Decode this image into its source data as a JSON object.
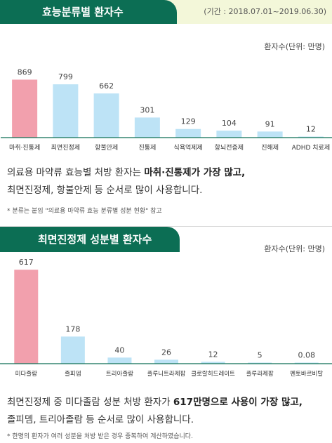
{
  "chart_data": [
    {
      "type": "bar",
      "title": "효능분류별 환자수",
      "subtitle": "(기간 : 2018.07.01~2019.06.30)",
      "ylabel": "환자수(단위: 만명)",
      "categories": [
        "마취·진통제",
        "최면진정제",
        "항불안제",
        "진통제",
        "식욕억제제",
        "항뇌전증제",
        "진해제",
        "ADHD 치료제"
      ],
      "values": [
        869,
        799,
        662,
        301,
        129,
        104,
        91,
        12
      ],
      "value_labels": [
        "869",
        "799",
        "662",
        "301",
        "129",
        "104",
        "91",
        "12"
      ],
      "ylim": [
        0,
        1000
      ],
      "highlight_index": 0,
      "colors": {
        "highlight": "#f2a0ad",
        "normal": "#bde3f6"
      },
      "grid": false
    },
    {
      "type": "bar",
      "title": "최면진정제 성분별 환자수",
      "ylabel": "환자수(단위: 만명)",
      "categories": [
        "미다졸람",
        "졸피뎀",
        "트리아졸람",
        "플루니트라제팜",
        "클로랄히드레이트",
        "플루라제팜",
        "펜토바르비탈"
      ],
      "values": [
        617,
        178,
        40,
        26,
        12,
        5,
        0.08
      ],
      "value_labels": [
        "617",
        "178",
        "40",
        "26",
        "12",
        "5",
        "0.08"
      ],
      "ylim": [
        0,
        650
      ],
      "highlight_index": 0,
      "colors": {
        "highlight": "#f2a0ad",
        "normal": "#bde3f6"
      },
      "grid": false
    }
  ],
  "section1": {
    "summary_line1_pre": "의료용 마약류 효능별 처방 환자는 ",
    "summary_line1_bold": "마취·진통제가 가장 많고,",
    "summary_line2": "최면진정제, 항불안제 등 순서로 많이 사용합니다.",
    "note": "* 분류는 붙임 \"의료용 마약류 효능 분류별 성분 현황\" 참고"
  },
  "section2": {
    "summary_line1_pre": "최면진정제 중 미다졸람 성분 처방 환자가 ",
    "summary_line1_bold": "617만명으로 사용이 가장 많고,",
    "summary_line2": "졸피뎀, 트리아졸람 등 순서로 많이 사용합니다.",
    "note": "* 한명의 환자가 여러 성분을 처방 받은 경우 중복하여 계산하였습니다."
  }
}
